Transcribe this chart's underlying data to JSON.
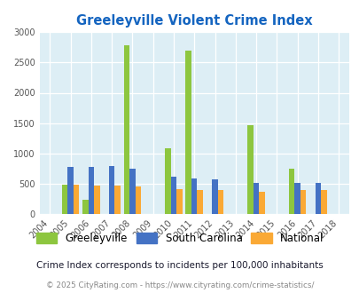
{
  "title": "Greeleyville Violent Crime Index",
  "years": [
    2004,
    2005,
    2006,
    2007,
    2008,
    2009,
    2010,
    2011,
    2012,
    2013,
    2014,
    2015,
    2016,
    2017,
    2018
  ],
  "greeleyville": [
    0,
    480,
    240,
    0,
    2780,
    0,
    1090,
    2700,
    0,
    0,
    1470,
    0,
    740,
    0,
    0
  ],
  "south_carolina": [
    0,
    770,
    775,
    790,
    740,
    0,
    610,
    590,
    565,
    0,
    505,
    0,
    505,
    505,
    0
  ],
  "national": [
    0,
    480,
    470,
    475,
    455,
    0,
    405,
    390,
    395,
    0,
    365,
    0,
    400,
    390,
    0
  ],
  "greeleyville_color": "#8dc63f",
  "south_carolina_color": "#4472c4",
  "national_color": "#faa935",
  "bg_color": "#ddeef5",
  "plot_bg_color": "#ddeef5",
  "title_color": "#1565c0",
  "ylim": [
    0,
    3000
  ],
  "yticks": [
    0,
    500,
    1000,
    1500,
    2000,
    2500,
    3000
  ],
  "subtitle": "Crime Index corresponds to incidents per 100,000 inhabitants",
  "footer": "© 2025 CityRating.com - https://www.cityrating.com/crime-statistics/",
  "subtitle_color": "#1a1a2e",
  "footer_color": "#888888"
}
